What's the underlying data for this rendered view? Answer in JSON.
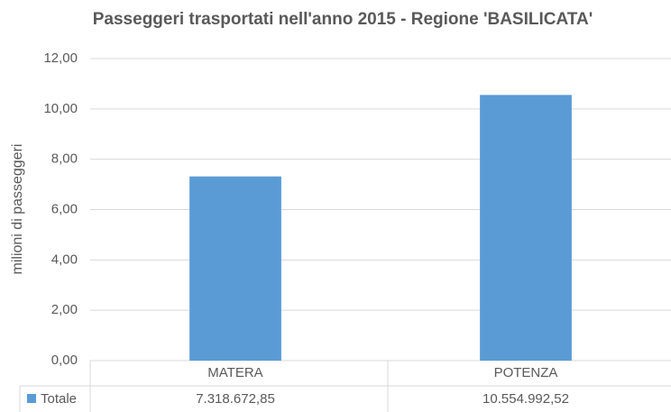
{
  "chart_data": {
    "type": "bar",
    "title": "Passeggeri trasportati nell'anno 2015 - Regione 'BASILICATA'",
    "y_label": "milioni di passeggeri",
    "categories": [
      "MATERA",
      "POTENZA"
    ],
    "series": [
      {
        "name": "Totale",
        "color": "#5b9bd5",
        "values": [
          7.31867285,
          10.55499252
        ],
        "value_labels": [
          "7.318.672,85",
          "10.554.992,52"
        ]
      }
    ],
    "ylim": [
      0,
      12
    ],
    "yticks": [
      {
        "value": 0,
        "label": "0,00"
      },
      {
        "value": 2,
        "label": "2,00"
      },
      {
        "value": 4,
        "label": "4,00"
      },
      {
        "value": 6,
        "label": "6,00"
      },
      {
        "value": 8,
        "label": "8,00"
      },
      {
        "value": 10,
        "label": "10,00"
      },
      {
        "value": 12,
        "label": "12,00"
      }
    ],
    "grid": true
  }
}
